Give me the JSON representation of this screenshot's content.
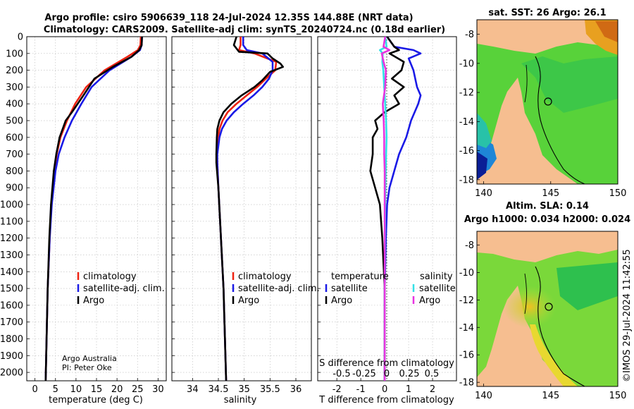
{
  "title_line1": "Argo profile: csiro 5906639_118 24-Jul-2024 12.35S 144.88E (NRT data)",
  "title_line2": "Climatology: CARS2009. Satellite-adj clim: synTS_20240724.nc (0.18d earlier)",
  "credit_line1": "Argo Australia",
  "credit_line2": "PI: Peter Oke",
  "watermark": "©IMOS 29-Jul-2024 11:42:55",
  "colors": {
    "climatology": "#ee2211",
    "satellite": "#1a1ae6",
    "argo": "#000000",
    "sat_salinity": "#33e0e6",
    "argo_salinity": "#e833e0",
    "land": "#f6be90"
  },
  "chart_data": [
    {
      "type": "line",
      "title": "",
      "xlabel": "temperature (deg C)",
      "ylabel": "",
      "xlim": [
        -2,
        32
      ],
      "ylim": [
        2050,
        0
      ],
      "xticks": [
        0,
        5,
        10,
        15,
        20,
        25,
        30
      ],
      "yticks": [
        0,
        100,
        200,
        300,
        400,
        500,
        600,
        700,
        800,
        900,
        1000,
        1100,
        1200,
        1300,
        1400,
        1500,
        1600,
        1700,
        1800,
        1900,
        2000
      ],
      "legend": [
        "climatology",
        "satellite-adj. clim.",
        "Argo"
      ],
      "series": [
        {
          "name": "climatology",
          "color": "#ee2211",
          "depth": [
            0,
            50,
            80,
            120,
            200,
            300,
            400,
            500,
            600,
            700,
            800,
            1000,
            1200,
            1500,
            2050
          ],
          "values": [
            25.8,
            25.7,
            25.1,
            22.5,
            17,
            12.5,
            9.8,
            7.8,
            6.2,
            5.3,
            4.7,
            4,
            3.6,
            3.1,
            2.6
          ]
        },
        {
          "name": "satellite-adj. clim.",
          "color": "#1a1ae6",
          "depth": [
            0,
            50,
            80,
            120,
            200,
            300,
            400,
            500,
            600,
            700,
            800,
            1000,
            1200,
            1500,
            2050
          ],
          "values": [
            26.1,
            26,
            25.6,
            23.5,
            18.2,
            13.8,
            11.3,
            9,
            7.2,
            5.8,
            5,
            4.1,
            3.6,
            3.1,
            2.6
          ]
        },
        {
          "name": "Argo",
          "color": "#000000",
          "depth": [
            0,
            50,
            80,
            120,
            180,
            250,
            350,
            450,
            500,
            600,
            700,
            800,
            1000,
            1200,
            1500,
            2050
          ],
          "values": [
            26.1,
            26,
            25.4,
            23.5,
            19,
            14.5,
            11.8,
            9,
            7.5,
            6,
            5.2,
            4.6,
            3.9,
            3.5,
            3.1,
            2.6
          ]
        }
      ]
    },
    {
      "type": "line",
      "title": "",
      "xlabel": "salinity",
      "ylabel": "",
      "xlim": [
        33.6,
        36.3
      ],
      "ylim": [
        2050,
        0
      ],
      "xticks": [
        34,
        34.5,
        35,
        35.5,
        36
      ],
      "legend": [
        "climatology",
        "satellite-adj. clim.",
        "Argo"
      ],
      "series": [
        {
          "name": "climatology",
          "color": "#ee2211",
          "depth": [
            0,
            50,
            80,
            100,
            150,
            200,
            250,
            300,
            350,
            400,
            450,
            500,
            550,
            600,
            700,
            750,
            900,
            1500,
            2050
          ],
          "values": [
            34.93,
            34.93,
            34.9,
            35.2,
            35.62,
            35.6,
            35.42,
            35.25,
            35.05,
            34.85,
            34.68,
            34.58,
            34.52,
            34.5,
            34.47,
            34.48,
            34.5,
            34.6,
            34.65
          ]
        },
        {
          "name": "satellite-adj. clim.",
          "color": "#1a1ae6",
          "depth": [
            0,
            50,
            80,
            100,
            150,
            200,
            250,
            300,
            350,
            400,
            450,
            500,
            550,
            600,
            700,
            750,
            900,
            1500,
            2050
          ],
          "values": [
            34.98,
            34.98,
            35.05,
            35.35,
            35.55,
            35.55,
            35.48,
            35.35,
            35.18,
            34.98,
            34.8,
            34.66,
            34.57,
            34.52,
            34.48,
            34.48,
            34.5,
            34.6,
            34.65
          ]
        },
        {
          "name": "Argo",
          "color": "#000000",
          "depth": [
            0,
            50,
            90,
            100,
            130,
            160,
            180,
            210,
            260,
            300,
            350,
            400,
            450,
            500,
            550,
            600,
            700,
            750,
            900,
            1500,
            2050
          ],
          "values": [
            34.85,
            34.8,
            34.9,
            35.45,
            35.55,
            35.7,
            35.75,
            35.5,
            35.35,
            35.2,
            34.95,
            34.75,
            34.6,
            34.52,
            34.48,
            34.47,
            34.46,
            34.46,
            34.5,
            34.6,
            34.65
          ]
        }
      ]
    },
    {
      "type": "line",
      "title": "",
      "xlabel": "T difference from climatology",
      "xlabel_top": "S difference from climatology",
      "xlim": [
        -2.8,
        3
      ],
      "ylim": [
        2050,
        0
      ],
      "xticks": [
        -2,
        -1,
        0,
        1,
        2
      ],
      "xtick_labels": [
        "-2",
        "-1",
        "0",
        "1",
        "2"
      ],
      "xticks_top": [
        "-0.5",
        "-0.25",
        "0",
        "0.25",
        "0.5"
      ],
      "legend_headers": [
        "temperature",
        "salinity"
      ],
      "legend_temperature": [
        "satellite",
        "Argo"
      ],
      "legend_salinity": [
        "satellite",
        "Argo"
      ],
      "series": [
        {
          "name": "temperature satellite",
          "color": "#1a1ae6",
          "depth": [
            0,
            60,
            80,
            100,
            130,
            200,
            300,
            350,
            400,
            500,
            600,
            700,
            800,
            900,
            1000,
            1200,
            1500,
            2050
          ],
          "values": [
            0.1,
            0.4,
            1.2,
            1.5,
            1.0,
            1.2,
            1.35,
            1.5,
            1.4,
            1.1,
            0.9,
            0.6,
            0.4,
            0.2,
            0.1,
            0.05,
            0,
            0
          ]
        },
        {
          "name": "temperature Argo",
          "color": "#000000",
          "depth": [
            0,
            60,
            80,
            100,
            150,
            200,
            250,
            300,
            350,
            400,
            450,
            500,
            550,
            600,
            700,
            800,
            900,
            1000,
            1200,
            1500,
            2050
          ],
          "values": [
            0.1,
            0.4,
            0.6,
            0.2,
            0.8,
            0.7,
            0.3,
            0.8,
            0.4,
            0.6,
            0,
            -0.4,
            -0.3,
            -0.5,
            -0.5,
            -0.6,
            -0.4,
            -0.2,
            -0.1,
            0,
            0
          ]
        },
        {
          "name": "salinity satellite",
          "color": "#33e0e6",
          "depth": [
            0,
            60,
            80,
            100,
            150,
            200,
            300,
            400,
            500,
            600,
            800,
            1000,
            1500,
            2050
          ],
          "values": [
            0.02,
            0.08,
            -0.2,
            -0.08,
            -0.1,
            -0.06,
            -0.02,
            0.02,
            0.06,
            0.08,
            0.04,
            0.02,
            0,
            0
          ]
        },
        {
          "name": "salinity Argo",
          "color": "#e833e0",
          "depth": [
            0,
            60,
            80,
            100,
            150,
            200,
            300,
            400,
            500,
            600,
            700,
            800,
            1000,
            1500,
            2050
          ],
          "values": [
            0.02,
            -0.05,
            0.2,
            -0.12,
            -0.05,
            0.05,
            0.02,
            -0.08,
            -0.04,
            -0.02,
            -0.02,
            0,
            0,
            0,
            0
          ]
        }
      ]
    },
    {
      "type": "heatmap",
      "title": "sat. SST: 26 Argo: 26.1",
      "xlim": [
        139.5,
        150
      ],
      "ylim": [
        -18.3,
        -7
      ],
      "xticks": [
        140,
        145,
        150
      ],
      "yticks": [
        -8,
        -10,
        -12,
        -14,
        -16,
        -18
      ],
      "marker": {
        "lon": 144.88,
        "lat": -12.35
      }
    },
    {
      "type": "heatmap",
      "title_line1": "Altim. SLA: 0.14",
      "title_line2": "Argo h1000: 0.034 h2000: 0.024",
      "xlim": [
        139.5,
        150
      ],
      "ylim": [
        -18.3,
        -7
      ],
      "xticks": [
        140,
        145,
        150
      ],
      "yticks": [
        -8,
        -10,
        -12,
        -14,
        -16,
        -18
      ],
      "marker": {
        "lon": 144.88,
        "lat": -12.35
      }
    }
  ]
}
